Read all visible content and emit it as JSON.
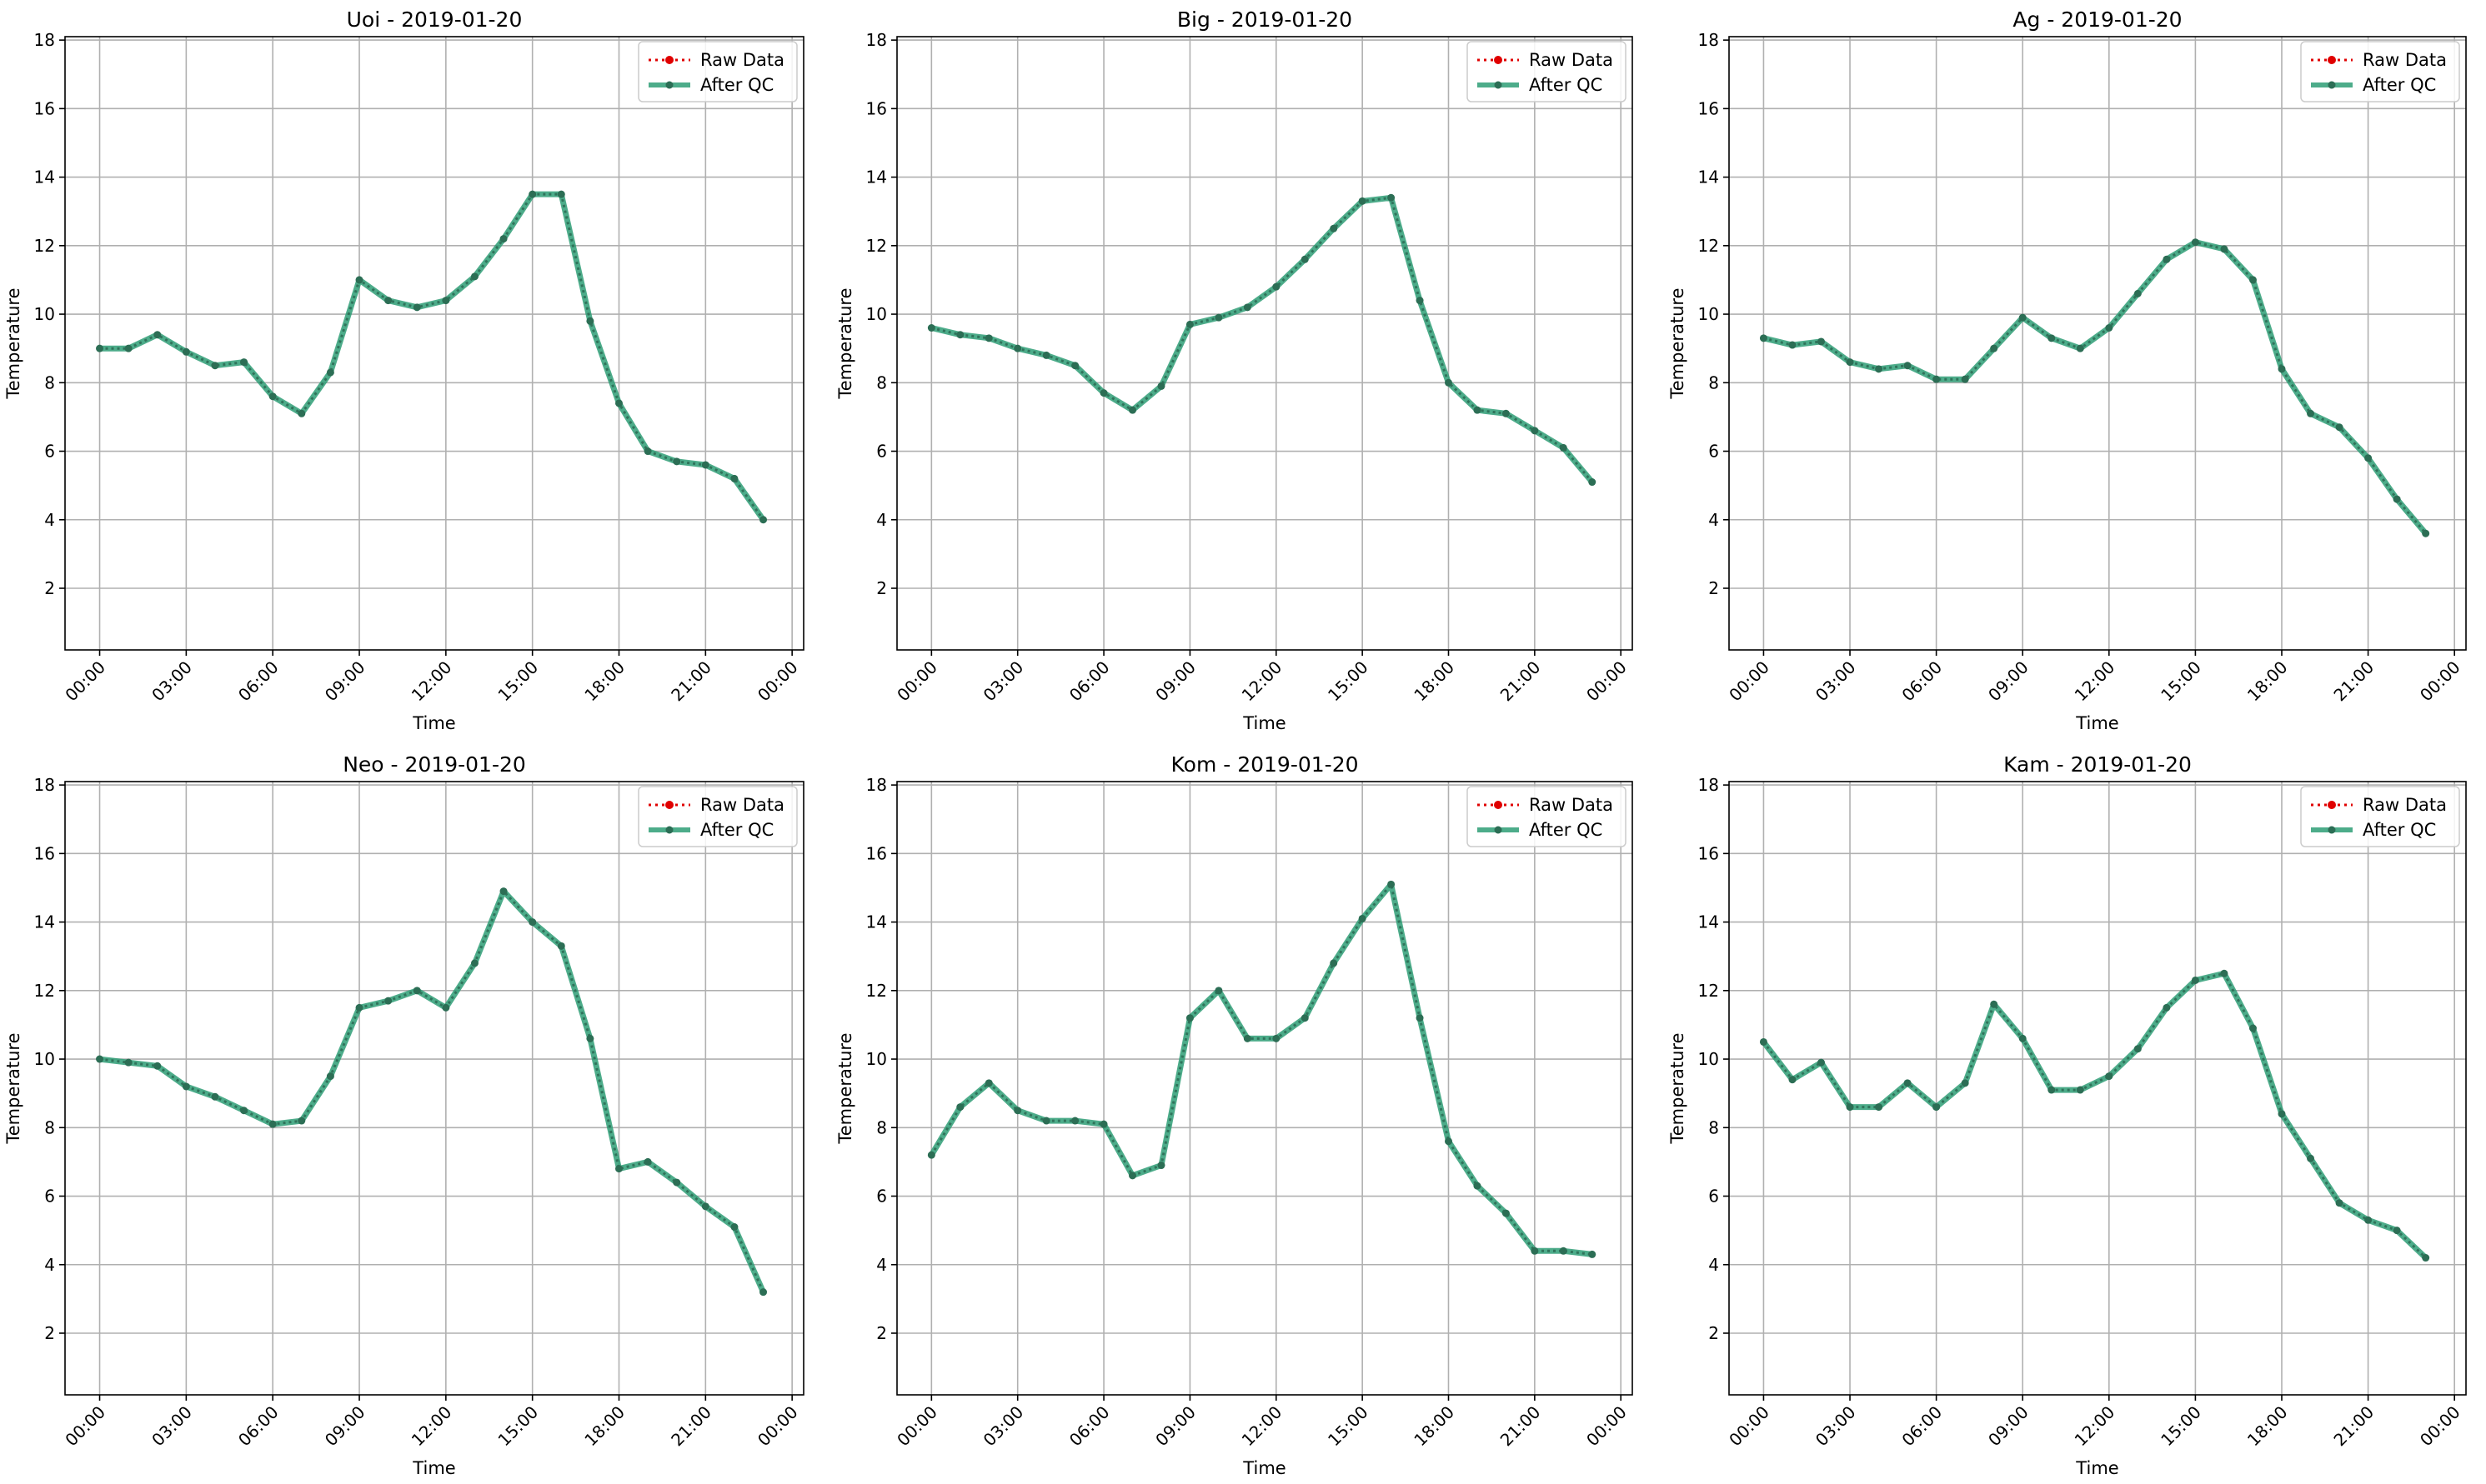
{
  "colors": {
    "raw": "#e00000",
    "qc": "#2e9e76",
    "qc_dark": "#2c6e55",
    "grid": "#b0b0b0",
    "axis": "#000000",
    "legend_border": "#cccccc"
  },
  "chart_data": [
    {
      "type": "line",
      "title": "Uoi - 2019-01-20",
      "xlabel": "Time",
      "ylabel": "Temperature",
      "x": [
        "00:00",
        "01:00",
        "02:00",
        "03:00",
        "04:00",
        "05:00",
        "06:00",
        "07:00",
        "08:00",
        "09:00",
        "10:00",
        "11:00",
        "12:00",
        "13:00",
        "14:00",
        "15:00",
        "16:00",
        "17:00",
        "18:00",
        "19:00",
        "20:00",
        "21:00",
        "22:00",
        "23:00"
      ],
      "xticks": [
        "00:00",
        "03:00",
        "06:00",
        "09:00",
        "12:00",
        "15:00",
        "18:00",
        "21:00",
        "00:00"
      ],
      "yticks": [
        2,
        4,
        6,
        8,
        10,
        12,
        14,
        16,
        18
      ],
      "ylim": [
        0.2,
        18.1
      ],
      "xlim_hours": [
        -1.2,
        24.4
      ],
      "grid": true,
      "legend_position": "top-right",
      "series": [
        {
          "name": "Raw Data",
          "style": "dotted",
          "values": [
            9.0,
            9.0,
            9.4,
            8.9,
            8.5,
            8.6,
            7.6,
            7.1,
            8.3,
            11.0,
            10.4,
            10.2,
            10.4,
            11.1,
            12.2,
            13.5,
            13.5,
            9.8,
            7.4,
            6.0,
            5.7,
            5.6,
            5.2,
            4.0
          ]
        },
        {
          "name": "After QC",
          "style": "solid",
          "values": [
            9.0,
            9.0,
            9.4,
            8.9,
            8.5,
            8.6,
            7.6,
            7.1,
            8.3,
            11.0,
            10.4,
            10.2,
            10.4,
            11.1,
            12.2,
            13.5,
            13.5,
            9.8,
            7.4,
            6.0,
            5.7,
            5.6,
            5.2,
            4.0
          ]
        }
      ]
    },
    {
      "type": "line",
      "title": "Big - 2019-01-20",
      "xlabel": "Time",
      "ylabel": "Temperature",
      "x": [
        "00:00",
        "01:00",
        "02:00",
        "03:00",
        "04:00",
        "05:00",
        "06:00",
        "07:00",
        "08:00",
        "09:00",
        "10:00",
        "11:00",
        "12:00",
        "13:00",
        "14:00",
        "15:00",
        "16:00",
        "17:00",
        "18:00",
        "19:00",
        "20:00",
        "21:00",
        "22:00",
        "23:00"
      ],
      "xticks": [
        "00:00",
        "03:00",
        "06:00",
        "09:00",
        "12:00",
        "15:00",
        "18:00",
        "21:00",
        "00:00"
      ],
      "yticks": [
        2,
        4,
        6,
        8,
        10,
        12,
        14,
        16,
        18
      ],
      "ylim": [
        0.2,
        18.1
      ],
      "xlim_hours": [
        -1.2,
        24.4
      ],
      "grid": true,
      "legend_position": "top-right",
      "series": [
        {
          "name": "Raw Data",
          "style": "dotted",
          "values": [
            9.6,
            9.4,
            9.3,
            9.0,
            8.8,
            8.5,
            7.7,
            7.2,
            7.9,
            9.7,
            9.9,
            10.2,
            10.8,
            11.6,
            12.5,
            13.3,
            13.4,
            10.4,
            8.0,
            7.2,
            7.1,
            6.6,
            6.1,
            5.1
          ]
        },
        {
          "name": "After QC",
          "style": "solid",
          "values": [
            9.6,
            9.4,
            9.3,
            9.0,
            8.8,
            8.5,
            7.7,
            7.2,
            7.9,
            9.7,
            9.9,
            10.2,
            10.8,
            11.6,
            12.5,
            13.3,
            13.4,
            10.4,
            8.0,
            7.2,
            7.1,
            6.6,
            6.1,
            5.1
          ]
        }
      ]
    },
    {
      "type": "line",
      "title": "Ag - 2019-01-20",
      "xlabel": "Time",
      "ylabel": "Temperature",
      "x": [
        "00:00",
        "01:00",
        "02:00",
        "03:00",
        "04:00",
        "05:00",
        "06:00",
        "07:00",
        "08:00",
        "09:00",
        "10:00",
        "11:00",
        "12:00",
        "13:00",
        "14:00",
        "15:00",
        "16:00",
        "17:00",
        "18:00",
        "19:00",
        "20:00",
        "21:00",
        "22:00",
        "23:00"
      ],
      "xticks": [
        "00:00",
        "03:00",
        "06:00",
        "09:00",
        "12:00",
        "15:00",
        "18:00",
        "21:00",
        "00:00"
      ],
      "yticks": [
        2,
        4,
        6,
        8,
        10,
        12,
        14,
        16,
        18
      ],
      "ylim": [
        0.2,
        18.1
      ],
      "xlim_hours": [
        -1.2,
        24.4
      ],
      "grid": true,
      "legend_position": "top-right",
      "series": [
        {
          "name": "Raw Data",
          "style": "dotted",
          "values": [
            9.3,
            9.1,
            9.2,
            8.6,
            8.4,
            8.5,
            8.1,
            8.1,
            9.0,
            9.9,
            9.3,
            9.0,
            9.6,
            10.6,
            11.6,
            12.1,
            11.9,
            11.0,
            8.4,
            7.1,
            6.7,
            5.8,
            4.6,
            3.6
          ]
        },
        {
          "name": "After QC",
          "style": "solid",
          "values": [
            9.3,
            9.1,
            9.2,
            8.6,
            8.4,
            8.5,
            8.1,
            8.1,
            9.0,
            9.9,
            9.3,
            9.0,
            9.6,
            10.6,
            11.6,
            12.1,
            11.9,
            11.0,
            8.4,
            7.1,
            6.7,
            5.8,
            4.6,
            3.6
          ]
        }
      ]
    },
    {
      "type": "line",
      "title": "Neo - 2019-01-20",
      "xlabel": "Time",
      "ylabel": "Temperature",
      "x": [
        "00:00",
        "01:00",
        "02:00",
        "03:00",
        "04:00",
        "05:00",
        "06:00",
        "07:00",
        "08:00",
        "09:00",
        "10:00",
        "11:00",
        "12:00",
        "13:00",
        "14:00",
        "15:00",
        "16:00",
        "17:00",
        "18:00",
        "19:00",
        "20:00",
        "21:00",
        "22:00",
        "23:00"
      ],
      "xticks": [
        "00:00",
        "03:00",
        "06:00",
        "09:00",
        "12:00",
        "15:00",
        "18:00",
        "21:00",
        "00:00"
      ],
      "yticks": [
        2,
        4,
        6,
        8,
        10,
        12,
        14,
        16,
        18
      ],
      "ylim": [
        0.2,
        18.1
      ],
      "xlim_hours": [
        -1.2,
        24.4
      ],
      "grid": true,
      "legend_position": "top-right",
      "series": [
        {
          "name": "Raw Data",
          "style": "dotted",
          "values": [
            10.0,
            9.9,
            9.8,
            9.2,
            8.9,
            8.5,
            8.1,
            8.2,
            9.5,
            11.5,
            11.7,
            12.0,
            11.5,
            12.8,
            14.9,
            14.0,
            13.3,
            10.6,
            6.8,
            7.0,
            6.4,
            5.7,
            5.1,
            3.2
          ]
        },
        {
          "name": "After QC",
          "style": "solid",
          "values": [
            10.0,
            9.9,
            9.8,
            9.2,
            8.9,
            8.5,
            8.1,
            8.2,
            9.5,
            11.5,
            11.7,
            12.0,
            11.5,
            12.8,
            14.9,
            14.0,
            13.3,
            10.6,
            6.8,
            7.0,
            6.4,
            5.7,
            5.1,
            3.2
          ]
        }
      ]
    },
    {
      "type": "line",
      "title": "Kom - 2019-01-20",
      "xlabel": "Time",
      "ylabel": "Temperature",
      "x": [
        "00:00",
        "01:00",
        "02:00",
        "03:00",
        "04:00",
        "05:00",
        "06:00",
        "07:00",
        "08:00",
        "09:00",
        "10:00",
        "11:00",
        "12:00",
        "13:00",
        "14:00",
        "15:00",
        "16:00",
        "17:00",
        "18:00",
        "19:00",
        "20:00",
        "21:00",
        "22:00",
        "23:00"
      ],
      "xticks": [
        "00:00",
        "03:00",
        "06:00",
        "09:00",
        "12:00",
        "15:00",
        "18:00",
        "21:00",
        "00:00"
      ],
      "yticks": [
        2,
        4,
        6,
        8,
        10,
        12,
        14,
        16,
        18
      ],
      "ylim": [
        0.2,
        18.1
      ],
      "xlim_hours": [
        -1.2,
        24.4
      ],
      "grid": true,
      "legend_position": "top-right",
      "series": [
        {
          "name": "Raw Data",
          "style": "dotted",
          "values": [
            7.2,
            8.6,
            9.3,
            8.5,
            8.2,
            8.2,
            8.1,
            6.6,
            6.9,
            11.2,
            12.0,
            10.6,
            10.6,
            11.2,
            12.8,
            14.1,
            15.1,
            11.2,
            7.6,
            6.3,
            5.5,
            4.4,
            4.4,
            4.3
          ]
        },
        {
          "name": "After QC",
          "style": "solid",
          "values": [
            7.2,
            8.6,
            9.3,
            8.5,
            8.2,
            8.2,
            8.1,
            6.6,
            6.9,
            11.2,
            12.0,
            10.6,
            10.6,
            11.2,
            12.8,
            14.1,
            15.1,
            11.2,
            7.6,
            6.3,
            5.5,
            4.4,
            4.4,
            4.3
          ]
        }
      ]
    },
    {
      "type": "line",
      "title": "Kam - 2019-01-20",
      "xlabel": "Time",
      "ylabel": "Temperature",
      "x": [
        "00:00",
        "01:00",
        "02:00",
        "03:00",
        "04:00",
        "05:00",
        "06:00",
        "07:00",
        "08:00",
        "09:00",
        "10:00",
        "11:00",
        "12:00",
        "13:00",
        "14:00",
        "15:00",
        "16:00",
        "17:00",
        "18:00",
        "19:00",
        "20:00",
        "21:00",
        "22:00",
        "23:00"
      ],
      "xticks": [
        "00:00",
        "03:00",
        "06:00",
        "09:00",
        "12:00",
        "15:00",
        "18:00",
        "21:00",
        "00:00"
      ],
      "yticks": [
        2,
        4,
        6,
        8,
        10,
        12,
        14,
        16,
        18
      ],
      "ylim": [
        0.2,
        18.1
      ],
      "xlim_hours": [
        -1.2,
        24.4
      ],
      "grid": true,
      "legend_position": "top-right",
      "series": [
        {
          "name": "Raw Data",
          "style": "dotted",
          "values": [
            10.5,
            9.4,
            9.9,
            8.6,
            8.6,
            9.3,
            8.6,
            9.3,
            11.6,
            10.6,
            9.1,
            9.1,
            9.5,
            10.3,
            11.5,
            12.3,
            12.5,
            10.9,
            8.4,
            7.1,
            5.8,
            5.3,
            5.0,
            4.2
          ]
        },
        {
          "name": "After QC",
          "style": "solid",
          "values": [
            10.5,
            9.4,
            9.9,
            8.6,
            8.6,
            9.3,
            8.6,
            9.3,
            11.6,
            10.6,
            9.1,
            9.1,
            9.5,
            10.3,
            11.5,
            12.3,
            12.5,
            10.9,
            8.4,
            7.1,
            5.8,
            5.3,
            5.0,
            4.2
          ]
        }
      ]
    }
  ]
}
